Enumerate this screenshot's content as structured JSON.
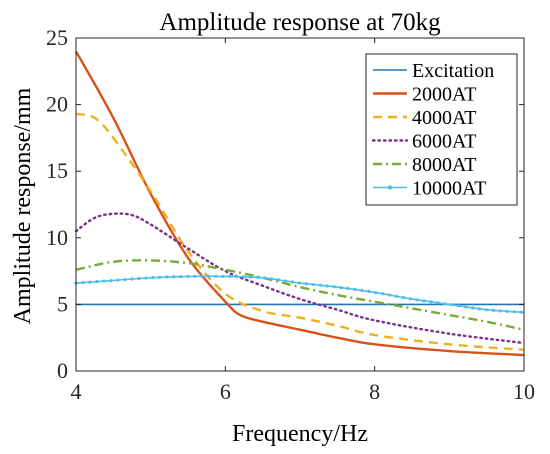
{
  "chart_data": {
    "type": "line",
    "title": "Amplitude response at 70kg",
    "xlabel": "Frequency/Hz",
    "ylabel": "Amplitude response/mm",
    "xlim": [
      4,
      10
    ],
    "ylim": [
      0,
      25
    ],
    "xticks": [
      4,
      6,
      8,
      10
    ],
    "yticks": [
      0,
      5,
      10,
      15,
      20,
      25
    ],
    "grid": false,
    "legend_position": "top-right",
    "series": [
      {
        "name": "Excitation",
        "color": "#1f77b4",
        "style": "solid",
        "x": [
          4,
          10
        ],
        "y": [
          5,
          5
        ]
      },
      {
        "name": "2000AT",
        "color": "#d95319",
        "style": "solid",
        "x": [
          4,
          4.5,
          5,
          5.5,
          6,
          6.2,
          6.5,
          7,
          7.5,
          8,
          9,
          10
        ],
        "y": [
          24,
          19,
          13.3,
          8.5,
          5.2,
          4.2,
          3.7,
          3.1,
          2.5,
          2.0,
          1.5,
          1.2
        ]
      },
      {
        "name": "4000AT",
        "color": "#edb120",
        "style": "dashed",
        "x": [
          4,
          4.25,
          4.5,
          5,
          5.5,
          6,
          6.5,
          7,
          7.5,
          8,
          9,
          10
        ],
        "y": [
          19.3,
          19.0,
          17.5,
          13.5,
          9.0,
          5.8,
          4.5,
          4.0,
          3.4,
          2.7,
          2.0,
          1.6
        ]
      },
      {
        "name": "6000AT",
        "color": "#7e2f8e",
        "style": "dotted",
        "x": [
          4,
          4.25,
          4.5,
          4.75,
          5,
          5.5,
          6,
          6.5,
          7,
          7.5,
          8,
          9,
          10
        ],
        "y": [
          10.5,
          11.5,
          11.8,
          11.7,
          11.0,
          9.2,
          7.5,
          6.4,
          5.4,
          4.6,
          3.8,
          2.8,
          2.1
        ]
      },
      {
        "name": "8000AT",
        "color": "#77ac30",
        "style": "dashdot",
        "x": [
          4,
          4.5,
          5,
          5.5,
          6,
          6.5,
          7,
          7.5,
          8,
          8.5,
          9,
          9.5,
          10
        ],
        "y": [
          7.6,
          8.2,
          8.3,
          8.1,
          7.6,
          7.0,
          6.3,
          5.7,
          5.2,
          4.7,
          4.2,
          3.7,
          3.1
        ]
      },
      {
        "name": "10000AT",
        "color": "#4dbeee",
        "style": "solid-marker",
        "x": [
          4,
          4.5,
          5,
          5.5,
          6,
          6.5,
          7,
          7.5,
          8,
          8.5,
          9,
          9.5,
          10
        ],
        "y": [
          6.6,
          6.8,
          7.0,
          7.1,
          7.1,
          7.0,
          6.6,
          6.3,
          5.9,
          5.4,
          5.0,
          4.6,
          4.4
        ]
      }
    ]
  }
}
